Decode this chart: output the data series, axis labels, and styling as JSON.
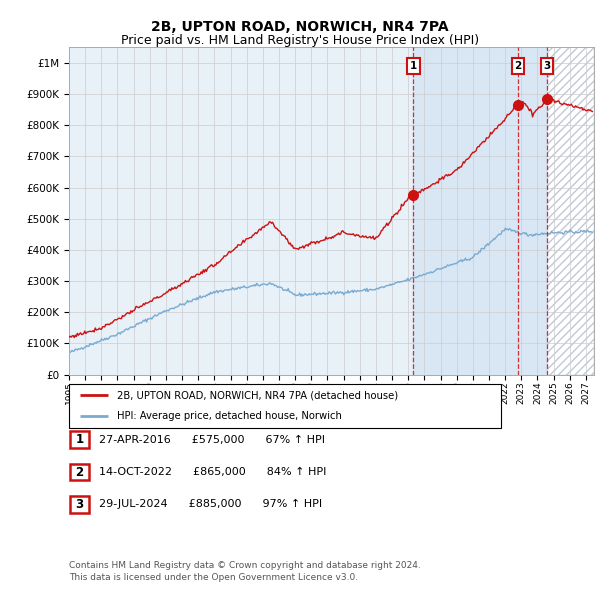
{
  "title": "2B, UPTON ROAD, NORWICH, NR4 7PA",
  "subtitle": "Price paid vs. HM Land Registry's House Price Index (HPI)",
  "ylim": [
    0,
    1050000
  ],
  "yticks": [
    0,
    100000,
    200000,
    300000,
    400000,
    500000,
    600000,
    700000,
    800000,
    900000,
    1000000
  ],
  "xlim_start": 1995.0,
  "xlim_end": 2027.5,
  "xticks": [
    1995,
    1996,
    1997,
    1998,
    1999,
    2000,
    2001,
    2002,
    2003,
    2004,
    2005,
    2006,
    2007,
    2008,
    2009,
    2010,
    2011,
    2012,
    2013,
    2014,
    2015,
    2016,
    2017,
    2018,
    2019,
    2020,
    2021,
    2022,
    2023,
    2024,
    2025,
    2026,
    2027
  ],
  "hpi_color": "#7aaad0",
  "price_color": "#cc1111",
  "grid_color": "#cccccc",
  "chart_bg": "#e8f0f8",
  "sale_events": [
    {
      "id": 1,
      "date_label": "27-APR-2016",
      "date_x": 2016.32,
      "price": 575000,
      "label": "£575,000",
      "pct": "67% ↑ HPI"
    },
    {
      "id": 2,
      "date_label": "14-OCT-2022",
      "date_x": 2022.79,
      "price": 865000,
      "label": "£865,000",
      "pct": "84% ↑ HPI"
    },
    {
      "id": 3,
      "date_label": "29-JUL-2024",
      "date_x": 2024.58,
      "price": 885000,
      "label": "£885,000",
      "pct": "97% ↑ HPI"
    }
  ],
  "legend_line1": "2B, UPTON ROAD, NORWICH, NR4 7PA (detached house)",
  "legend_line2": "HPI: Average price, detached house, Norwich",
  "footer1": "Contains HM Land Registry data © Crown copyright and database right 2024.",
  "footer2": "This data is licensed under the Open Government Licence v3.0.",
  "shaded_region_start": 2024.58,
  "title_fontsize": 10,
  "subtitle_fontsize": 9
}
